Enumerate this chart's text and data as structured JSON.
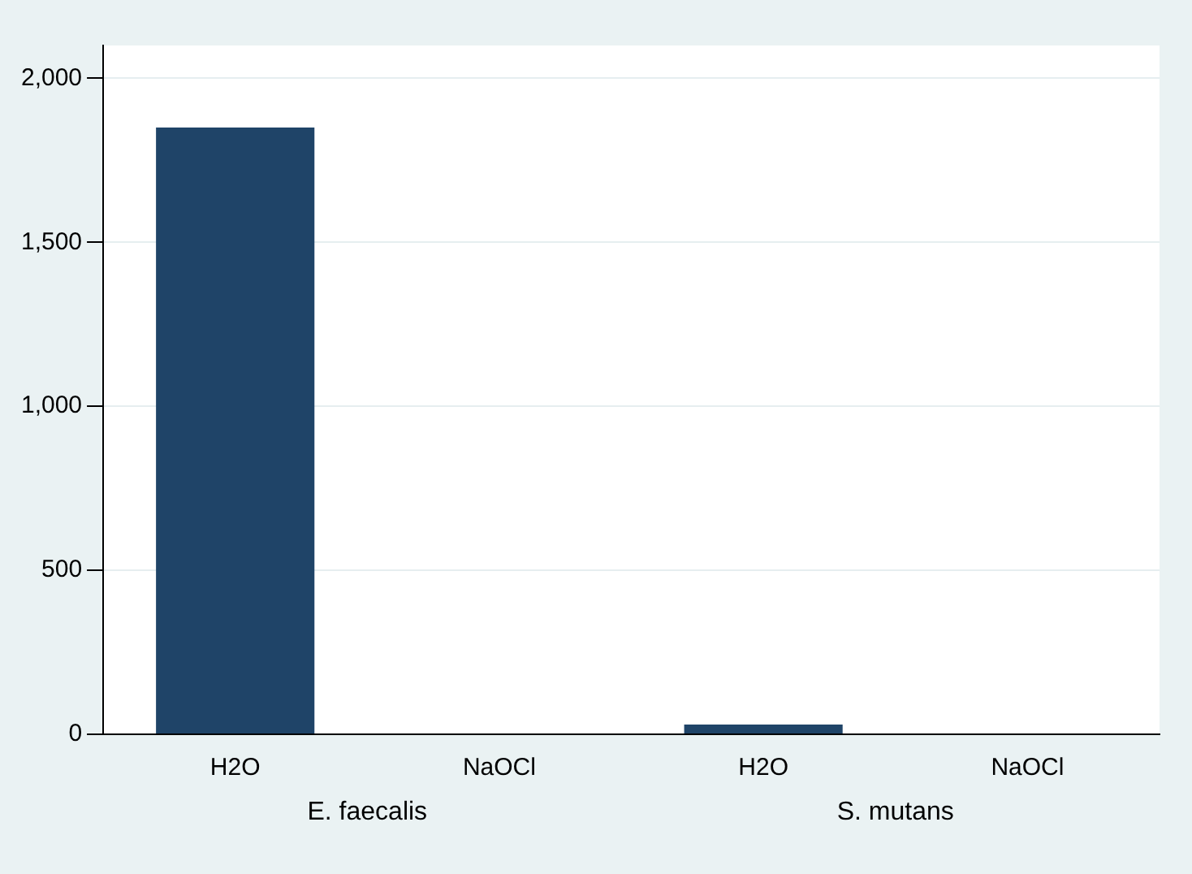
{
  "chart_data": {
    "type": "bar",
    "categories": [
      "H2O",
      "NaOCl",
      "H2O",
      "NaOCl"
    ],
    "values": [
      1850,
      0,
      30,
      0
    ],
    "color": "#1f4468",
    "ylim": [
      0,
      2100
    ],
    "yticks": [
      0,
      500,
      {
        "value": 1000,
        "label": "1,000"
      },
      {
        "value": 1500,
        "label": "1,500"
      },
      {
        "value": 2000,
        "label": "2,000"
      }
    ],
    "grid": "y",
    "legend": false,
    "annotations": [
      "E. faecalis",
      "S. mutans"
    ]
  }
}
